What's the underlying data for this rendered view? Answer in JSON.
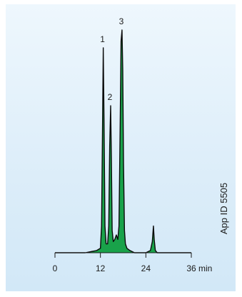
{
  "chart_data": {
    "type": "line",
    "title": "",
    "xlabel": "min",
    "ylabel": "",
    "x_ticks": [
      0,
      12,
      24,
      36
    ],
    "x_tick_labels": [
      "0",
      "12",
      "24",
      "36"
    ],
    "x_unit": "min",
    "xlim": [
      0,
      36
    ],
    "ylim": [
      0,
      1
    ],
    "grid": false,
    "fill_color": "#19a24a",
    "line_color": "#0a0a0a",
    "background_color": "#dcedf9",
    "series": [
      {
        "x": [
          0,
          8,
          11,
          12,
          12.3,
          12.55,
          12.75,
          12.95,
          13.2,
          13.5,
          13.9,
          14.2,
          14.45,
          14.7,
          14.9,
          15.1,
          15.4,
          15.8,
          16.2,
          16.6,
          16.9,
          17.2,
          17.45,
          17.7,
          17.9,
          18.1,
          18.35,
          18.6,
          19.0,
          19.8,
          21,
          24,
          25.2,
          25.7,
          26.0,
          26.2,
          26.5,
          27.0,
          30,
          36
        ],
        "y": [
          0.0,
          0.0,
          0.01,
          0.02,
          0.12,
          0.55,
          0.92,
          0.6,
          0.12,
          0.04,
          0.04,
          0.12,
          0.48,
          0.66,
          0.42,
          0.1,
          0.05,
          0.06,
          0.08,
          0.06,
          0.12,
          0.55,
          0.95,
          1.0,
          0.82,
          0.4,
          0.1,
          0.04,
          0.02,
          0.01,
          0.0,
          0.0,
          0.01,
          0.05,
          0.12,
          0.06,
          0.01,
          0.0,
          0.0,
          0.0
        ]
      }
    ],
    "annotations": [
      {
        "label": "1",
        "x": 12.75
      },
      {
        "label": "2",
        "x": 14.7
      },
      {
        "label": "3",
        "x": 17.7
      }
    ]
  },
  "side_label": "App ID 5505"
}
